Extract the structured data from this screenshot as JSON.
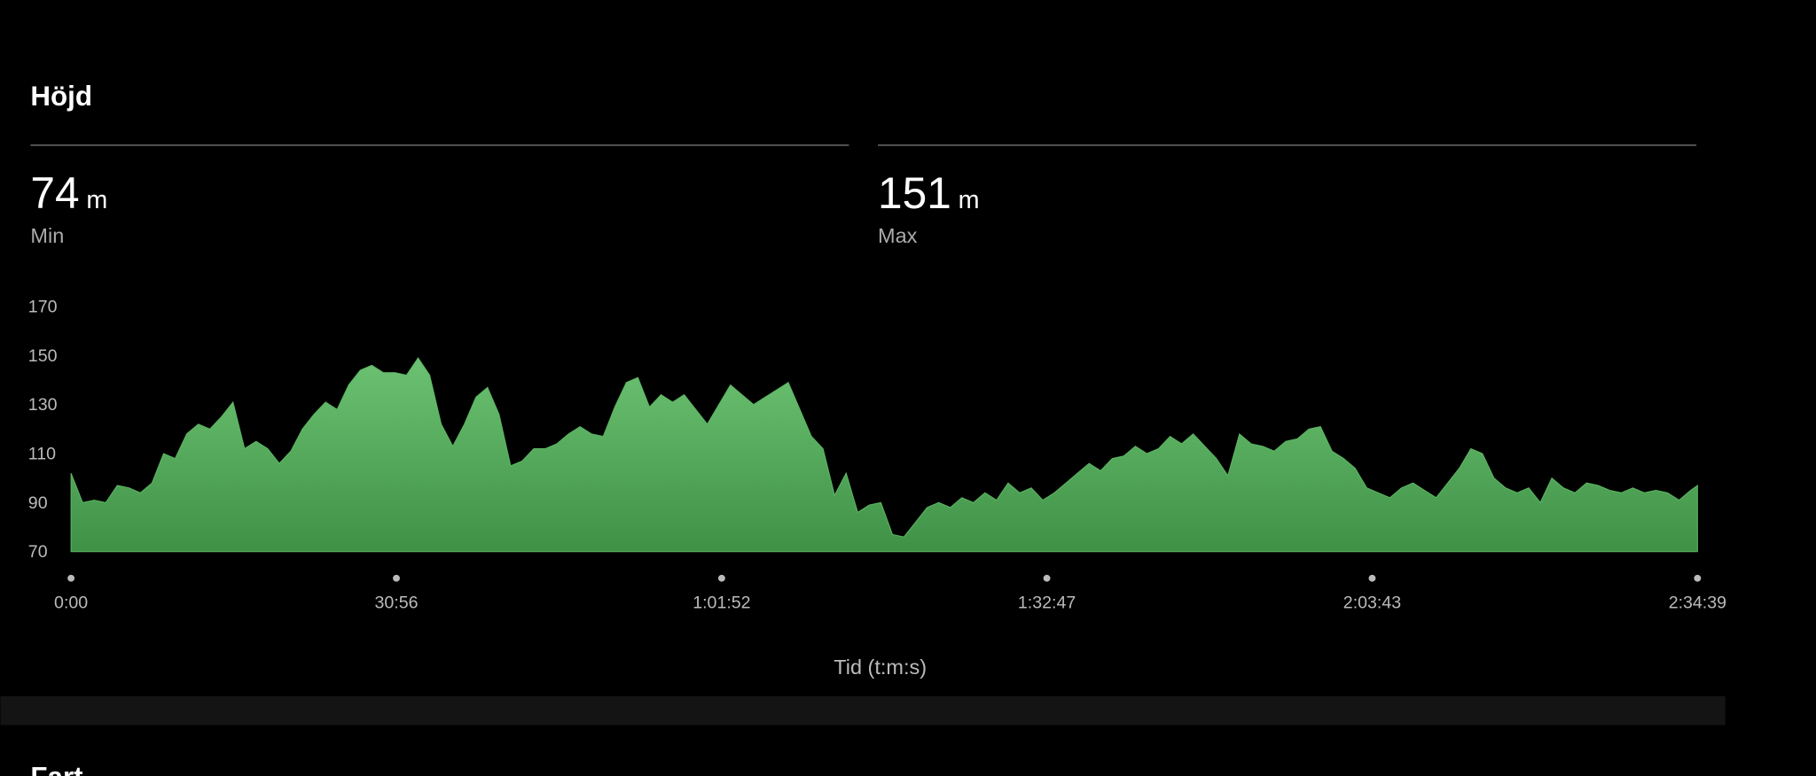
{
  "header": {
    "title": "Höjd"
  },
  "stats": [
    {
      "value": 74,
      "unit": "m",
      "label": "Min"
    },
    {
      "value": 151,
      "unit": "m",
      "label": "Max"
    }
  ],
  "chart_data": {
    "type": "area",
    "color": "#5cb562",
    "x": [
      0,
      66,
      132,
      198,
      264,
      330,
      396,
      462,
      528,
      594,
      660,
      726,
      792,
      858,
      924,
      990,
      1056,
      1122,
      1188,
      1254,
      1320,
      1386,
      1452,
      1518,
      1584,
      1650,
      1716,
      1782,
      1848,
      1914,
      1980,
      2046,
      2112,
      2178,
      2244,
      2310,
      2376,
      2442,
      2508,
      2574,
      2640,
      2706,
      2772,
      2838,
      2904,
      2970,
      3036,
      3102,
      3168,
      3234,
      3300,
      3366,
      3432,
      3498,
      3564,
      3630,
      3696,
      3762,
      3828,
      3894,
      3960,
      4026,
      4092,
      4158,
      4224,
      4290,
      4356,
      4422,
      4488,
      4554,
      4620,
      4686,
      4752,
      4818,
      4884,
      4950,
      5016,
      5082,
      5148,
      5214,
      5280,
      5346,
      5412,
      5478,
      5544,
      5610,
      5676,
      5742,
      5808,
      5874,
      5940,
      6006,
      6072,
      6138,
      6204,
      6270,
      6336,
      6402,
      6468,
      6534,
      6600,
      6666,
      6732,
      6798,
      6864,
      6930,
      6996,
      7062,
      7128,
      7194,
      7260,
      7326,
      7392,
      7458,
      7524,
      7590,
      7656,
      7722,
      7788,
      7854,
      7920,
      7986,
      8052,
      8118,
      8184,
      8250,
      8316,
      8382,
      8448,
      8514,
      8580,
      8646,
      8712,
      8778,
      8844,
      8910,
      8976,
      9042,
      9108,
      9174,
      9240,
      9279
    ],
    "values": [
      102,
      90,
      91,
      90,
      97,
      96,
      94,
      98,
      110,
      108,
      118,
      122,
      120,
      125,
      131,
      112,
      115,
      112,
      106,
      111,
      120,
      126,
      131,
      128,
      138,
      144,
      146,
      143,
      143,
      142,
      149,
      142,
      122,
      113,
      122,
      133,
      137,
      126,
      105,
      107,
      112,
      112,
      114,
      118,
      121,
      118,
      117,
      129,
      139,
      141,
      129,
      134,
      131,
      134,
      128,
      122,
      130,
      138,
      134,
      130,
      133,
      136,
      139,
      128,
      117,
      112,
      93,
      102,
      86,
      89,
      90,
      77,
      76,
      82,
      88,
      90,
      88,
      92,
      90,
      94,
      91,
      98,
      94,
      96,
      91,
      94,
      98,
      102,
      106,
      103,
      108,
      109,
      113,
      110,
      112,
      117,
      114,
      118,
      113,
      108,
      101,
      118,
      114,
      113,
      111,
      115,
      116,
      120,
      121,
      111,
      108,
      104,
      96,
      94,
      92,
      96,
      98,
      95,
      92,
      98,
      104,
      112,
      110,
      100,
      96,
      94,
      96,
      90,
      100,
      96,
      94,
      98,
      97,
      95,
      94,
      96,
      94,
      95,
      94,
      91,
      95,
      97
    ],
    "xlim": [
      0,
      9279
    ],
    "xticks": [
      {
        "value": 0,
        "label": "0:00"
      },
      {
        "value": 1856,
        "label": "30:56"
      },
      {
        "value": 3712,
        "label": "1:01:52"
      },
      {
        "value": 5567,
        "label": "1:32:47"
      },
      {
        "value": 7423,
        "label": "2:03:43"
      },
      {
        "value": 9279,
        "label": "2:34:39"
      }
    ],
    "ylim": [
      70,
      170
    ],
    "yticks": [
      70,
      90,
      110,
      130,
      150,
      170
    ],
    "xlabel": "Tid (t:m:s)"
  },
  "next_section": "Fart"
}
